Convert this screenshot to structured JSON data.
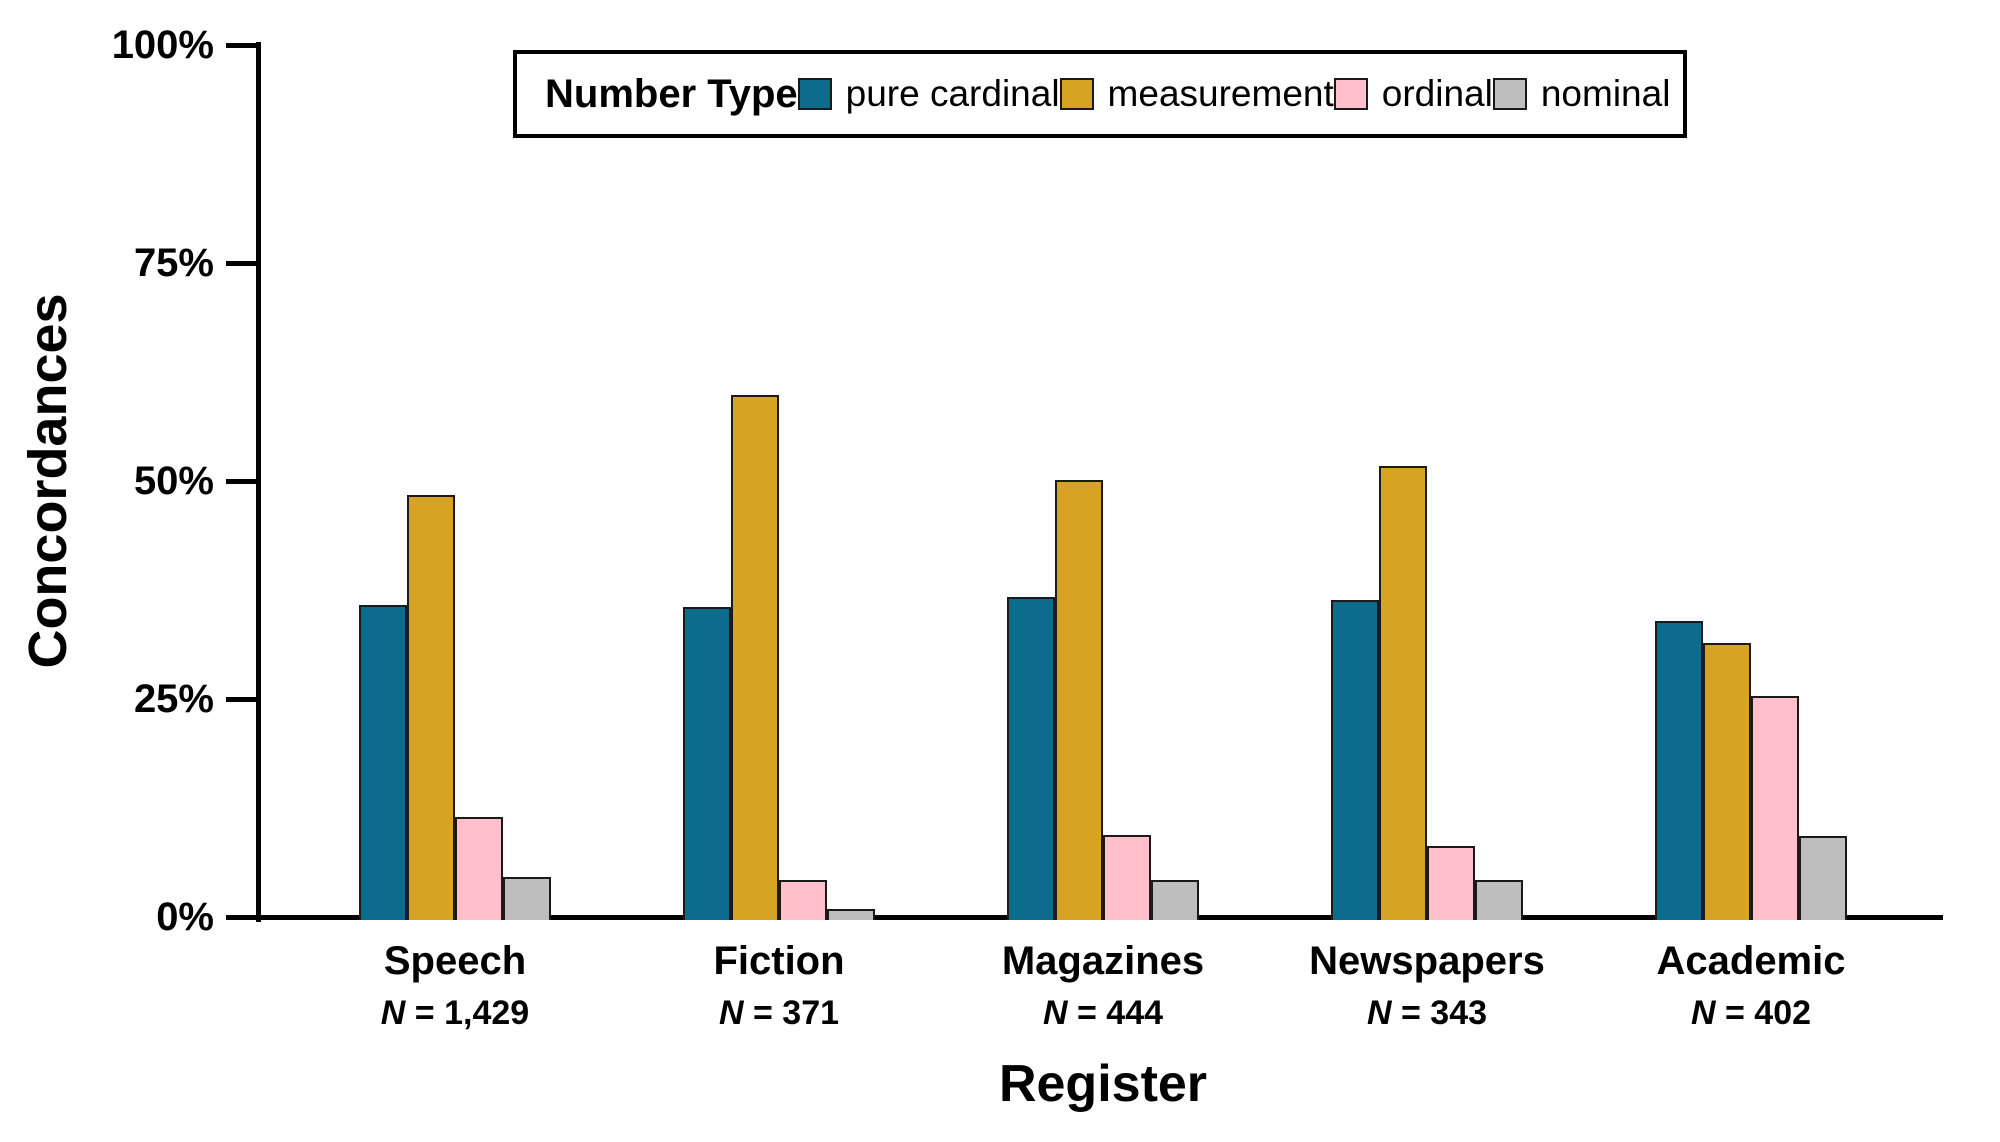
{
  "chart_data": {
    "type": "bar",
    "title": "",
    "xlabel": "Register",
    "ylabel": "Concordances",
    "ylim": [
      0,
      100
    ],
    "ytick_values": [
      0,
      25,
      50,
      75,
      100
    ],
    "ytick_labels": [
      "0%",
      "25%",
      "50%",
      "75%",
      "100%"
    ],
    "grid": false,
    "legend": {
      "title": "Number Type",
      "position": "top-center",
      "entries": [
        "pure cardinal",
        "measurement",
        "ordinal",
        "nominal"
      ]
    },
    "categories": [
      "Speech",
      "Fiction",
      "Magazines",
      "Newspapers",
      "Academic"
    ],
    "category_subtitles": [
      "N = 1,429",
      "N = 371",
      "N = 444",
      "N = 343",
      "N = 402"
    ],
    "series": [
      {
        "name": "pure cardinal",
        "color": "#0D6B8C",
        "values": [
          35.8,
          35.6,
          36.7,
          36.3,
          34.0
        ]
      },
      {
        "name": "measurement",
        "color": "#D7A323",
        "values": [
          48.4,
          59.9,
          50.1,
          51.7,
          31.4
        ]
      },
      {
        "name": "ordinal",
        "color": "#FFC0CB",
        "values": [
          11.5,
          4.3,
          9.4,
          8.1,
          25.4
        ]
      },
      {
        "name": "nominal",
        "color": "#BEBEBE",
        "values": [
          4.6,
          0.9,
          4.2,
          4.2,
          9.3
        ]
      }
    ],
    "colors": {
      "axis": "#000000",
      "bar_border": "#1A1A1A"
    }
  }
}
